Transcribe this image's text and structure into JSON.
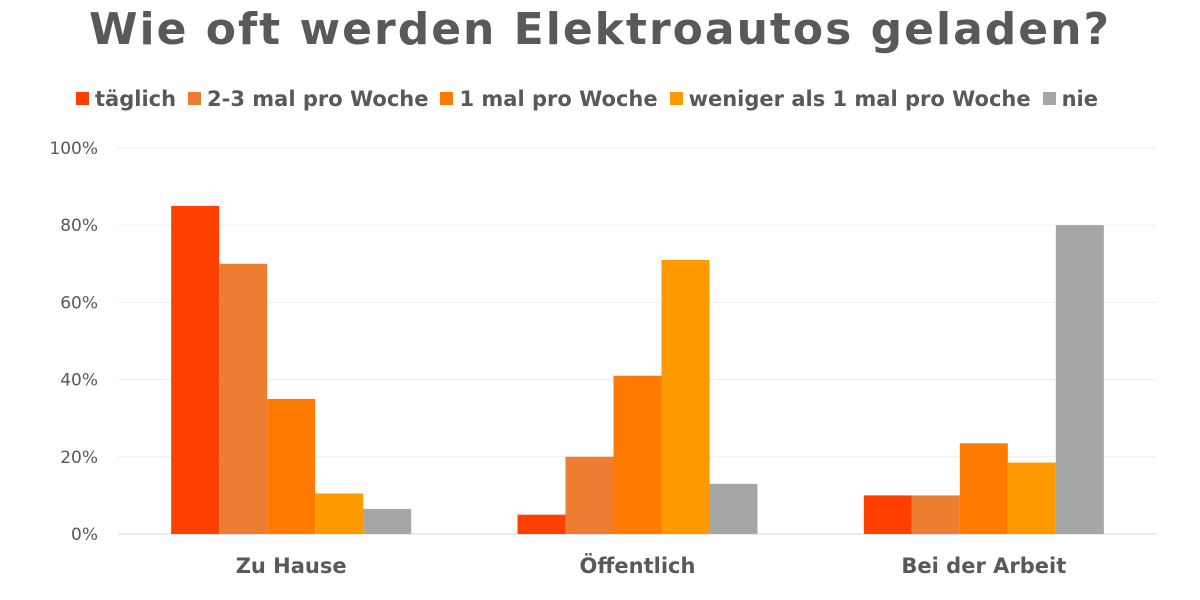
{
  "chart_data": {
    "type": "bar",
    "title": "Wie oft werden Elektroautos geladen?",
    "categories": [
      "Zu Hause",
      "Öffentlich",
      "Bei der Arbeit"
    ],
    "series": [
      {
        "name": "täglich",
        "color": "#FF4000",
        "values": [
          85,
          5,
          10
        ]
      },
      {
        "name": "2-3 mal pro Woche",
        "color": "#ED7D31",
        "values": [
          70,
          20,
          10
        ]
      },
      {
        "name": "1 mal pro Woche",
        "color": "#FF7A00",
        "values": [
          35,
          41,
          23.5
        ]
      },
      {
        "name": "weniger als 1 mal pro Woche",
        "color": "#FF9900",
        "values": [
          10.5,
          71,
          18.5
        ]
      },
      {
        "name": "nie",
        "color": "#A6A6A6",
        "values": [
          6.5,
          13,
          80
        ]
      }
    ],
    "ylim": [
      0,
      100
    ],
    "yticks": [
      "0%",
      "20%",
      "40%",
      "60%",
      "80%",
      "100%"
    ],
    "xlabel": "",
    "ylabel": "",
    "grid": true,
    "legend_position": "top"
  }
}
